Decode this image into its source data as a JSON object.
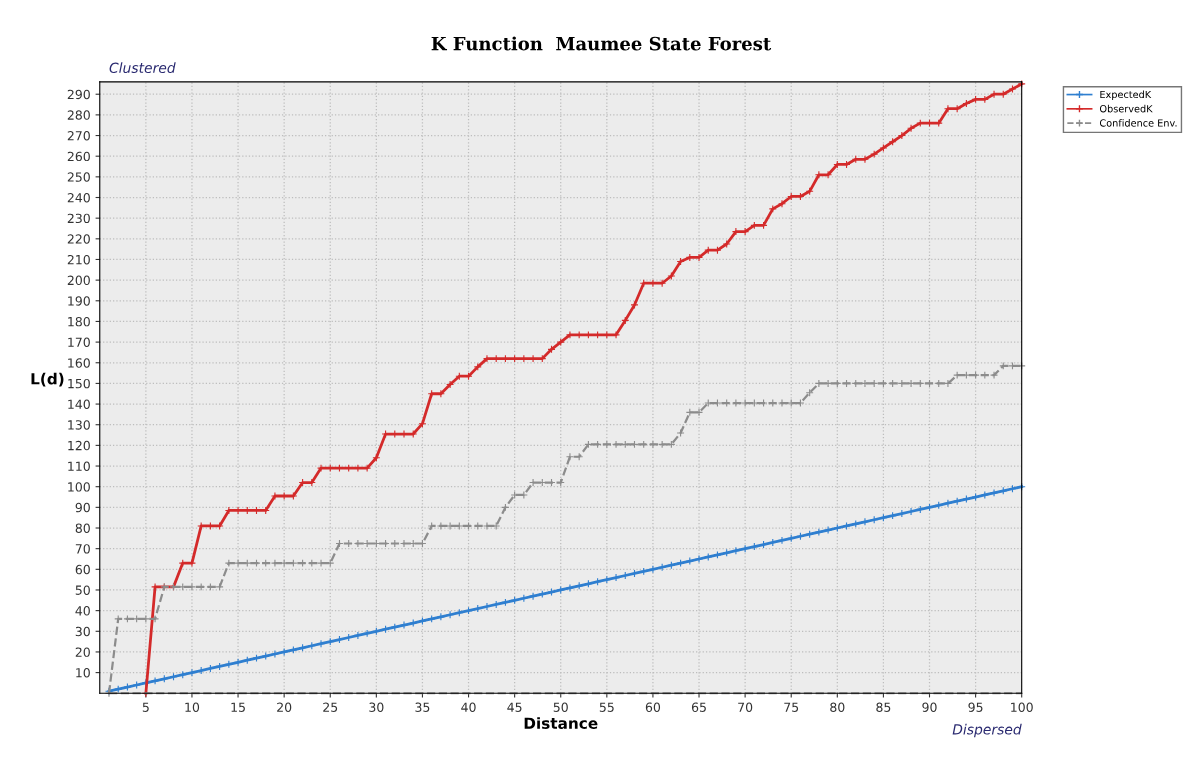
{
  "chart_data": {
    "type": "line",
    "title": "K Function  Maumee State Forest",
    "xlabel": "Distance",
    "ylabel": "L(d)",
    "annotations": [
      "Clustered",
      "Dispersed"
    ],
    "x": [
      1,
      2,
      3,
      4,
      5,
      6,
      7,
      8,
      9,
      10,
      11,
      12,
      13,
      14,
      15,
      16,
      17,
      18,
      19,
      20,
      21,
      22,
      23,
      24,
      25,
      26,
      27,
      28,
      29,
      30,
      31,
      32,
      33,
      34,
      35,
      36,
      37,
      38,
      39,
      40,
      41,
      42,
      43,
      44,
      45,
      46,
      47,
      48,
      49,
      50,
      51,
      52,
      53,
      54,
      55,
      56,
      57,
      58,
      59,
      60,
      61,
      62,
      63,
      64,
      65,
      66,
      67,
      68,
      69,
      70,
      71,
      72,
      73,
      74,
      75,
      76,
      77,
      78,
      79,
      80,
      81,
      82,
      83,
      84,
      85,
      86,
      87,
      88,
      89,
      90,
      91,
      92,
      93,
      94,
      95,
      96,
      97,
      98,
      99,
      100
    ],
    "series": [
      {
        "name": "ExpectedK",
        "color": "#2f7fd0",
        "line_style": "solid",
        "marker": "cross",
        "values": [
          1,
          2,
          3,
          4,
          5,
          6,
          7,
          8,
          9,
          10,
          11,
          12,
          13,
          14,
          15,
          16,
          17,
          18,
          19,
          20,
          21,
          22,
          23,
          24,
          25,
          26,
          27,
          28,
          29,
          30,
          31,
          32,
          33,
          34,
          35,
          36,
          37,
          38,
          39,
          40,
          41,
          42,
          43,
          44,
          45,
          46,
          47,
          48,
          49,
          50,
          51,
          52,
          53,
          54,
          55,
          56,
          57,
          58,
          59,
          60,
          61,
          62,
          63,
          64,
          65,
          66,
          67,
          68,
          69,
          70,
          71,
          72,
          73,
          74,
          75,
          76,
          77,
          78,
          79,
          80,
          81,
          82,
          83,
          84,
          85,
          86,
          87,
          88,
          89,
          90,
          91,
          92,
          93,
          94,
          95,
          96,
          97,
          98,
          99,
          100
        ]
      },
      {
        "name": "ObservedK",
        "color": "#d42a2a",
        "line_style": "solid",
        "marker": "cross",
        "values": [
          null,
          null,
          null,
          null,
          0,
          51.5,
          51.5,
          51.5,
          63,
          63,
          81,
          81,
          81,
          88.5,
          88.5,
          88.5,
          88.5,
          88.5,
          95.5,
          95.5,
          95.5,
          102,
          102,
          109,
          109,
          109,
          109,
          109,
          109,
          114,
          125.5,
          125.5,
          125.5,
          125.5,
          130.5,
          145,
          145,
          149.5,
          153.5,
          153.5,
          158,
          162,
          162,
          162,
          162,
          162,
          162,
          162,
          166.5,
          170,
          173.5,
          173.5,
          173.5,
          173.5,
          173.5,
          173.5,
          180.5,
          188,
          198.5,
          198.5,
          198.5,
          202,
          209,
          211,
          211,
          214.5,
          214.5,
          217.5,
          223.5,
          223.5,
          226.5,
          226.5,
          234.5,
          237,
          240.5,
          240.5,
          243,
          251,
          251,
          256,
          256,
          258.5,
          258.5,
          261,
          264,
          267,
          270,
          273.5,
          276,
          276,
          276,
          283,
          283,
          285.5,
          287.5,
          287.5,
          290,
          290,
          292.5,
          295
        ]
      },
      {
        "name": "Confidence Env.",
        "color": "#8c8c8c",
        "line_style": "dashed",
        "marker": "cross",
        "values": [
          0,
          36,
          36,
          36,
          36,
          36,
          51.5,
          51.5,
          51.5,
          51.5,
          51.5,
          51.5,
          51.5,
          63,
          63,
          63,
          63,
          63,
          63,
          63,
          63,
          63,
          63,
          63,
          63,
          72.5,
          72.5,
          72.5,
          72.5,
          72.5,
          72.5,
          72.5,
          72.5,
          72.5,
          72.5,
          81,
          81,
          81,
          81,
          81,
          81,
          81,
          81,
          90,
          96,
          96,
          102,
          102,
          102,
          102,
          114.5,
          114.5,
          120.5,
          120.5,
          120.5,
          120.5,
          120.5,
          120.5,
          120.5,
          120.5,
          120.5,
          120.5,
          126,
          136,
          136,
          140.5,
          140.5,
          140.5,
          140.5,
          140.5,
          140.5,
          140.5,
          140.5,
          140.5,
          140.5,
          140.5,
          145.5,
          150,
          150,
          150,
          150,
          150,
          150,
          150,
          150,
          150,
          150,
          150,
          150,
          150,
          150,
          150,
          154,
          154,
          154,
          154,
          154,
          158.5,
          158.5,
          158.5
        ]
      },
      {
        "color": "#8c8c8c",
        "line_style": "dashed",
        "marker": "none",
        "values": [
          0,
          0,
          0,
          0,
          0,
          0,
          0,
          0,
          0,
          0,
          0,
          0,
          0,
          0,
          0,
          0,
          0,
          0,
          0,
          0,
          0,
          0,
          0,
          0,
          0,
          0,
          0,
          0,
          0,
          0,
          0,
          0,
          0,
          0,
          0,
          0,
          0,
          0,
          0,
          0,
          0,
          0,
          0,
          0,
          0,
          0,
          0,
          0,
          0,
          0,
          0,
          0,
          0,
          0,
          0,
          0,
          0,
          0,
          0,
          0,
          0,
          0,
          0,
          0,
          0,
          0,
          0,
          0,
          0,
          0,
          0,
          0,
          0,
          0,
          0,
          0,
          0,
          0,
          0,
          0,
          0,
          0,
          0,
          0,
          0,
          0,
          0,
          0,
          0,
          0,
          0,
          0,
          0,
          0,
          0,
          0,
          0,
          0,
          0,
          0
        ]
      }
    ],
    "xlim": [
      0,
      100
    ],
    "ylim": [
      0,
      296
    ],
    "xticks": [
      5,
      10,
      15,
      20,
      25,
      30,
      35,
      40,
      45,
      50,
      55,
      60,
      65,
      70,
      75,
      80,
      85,
      90,
      95,
      100
    ],
    "yticks": [
      10,
      20,
      30,
      40,
      50,
      60,
      70,
      80,
      90,
      100,
      110,
      120,
      130,
      140,
      150,
      160,
      170,
      180,
      190,
      200,
      210,
      220,
      230,
      240,
      250,
      260,
      270,
      280,
      290
    ],
    "grid": true,
    "legend": "top right"
  }
}
